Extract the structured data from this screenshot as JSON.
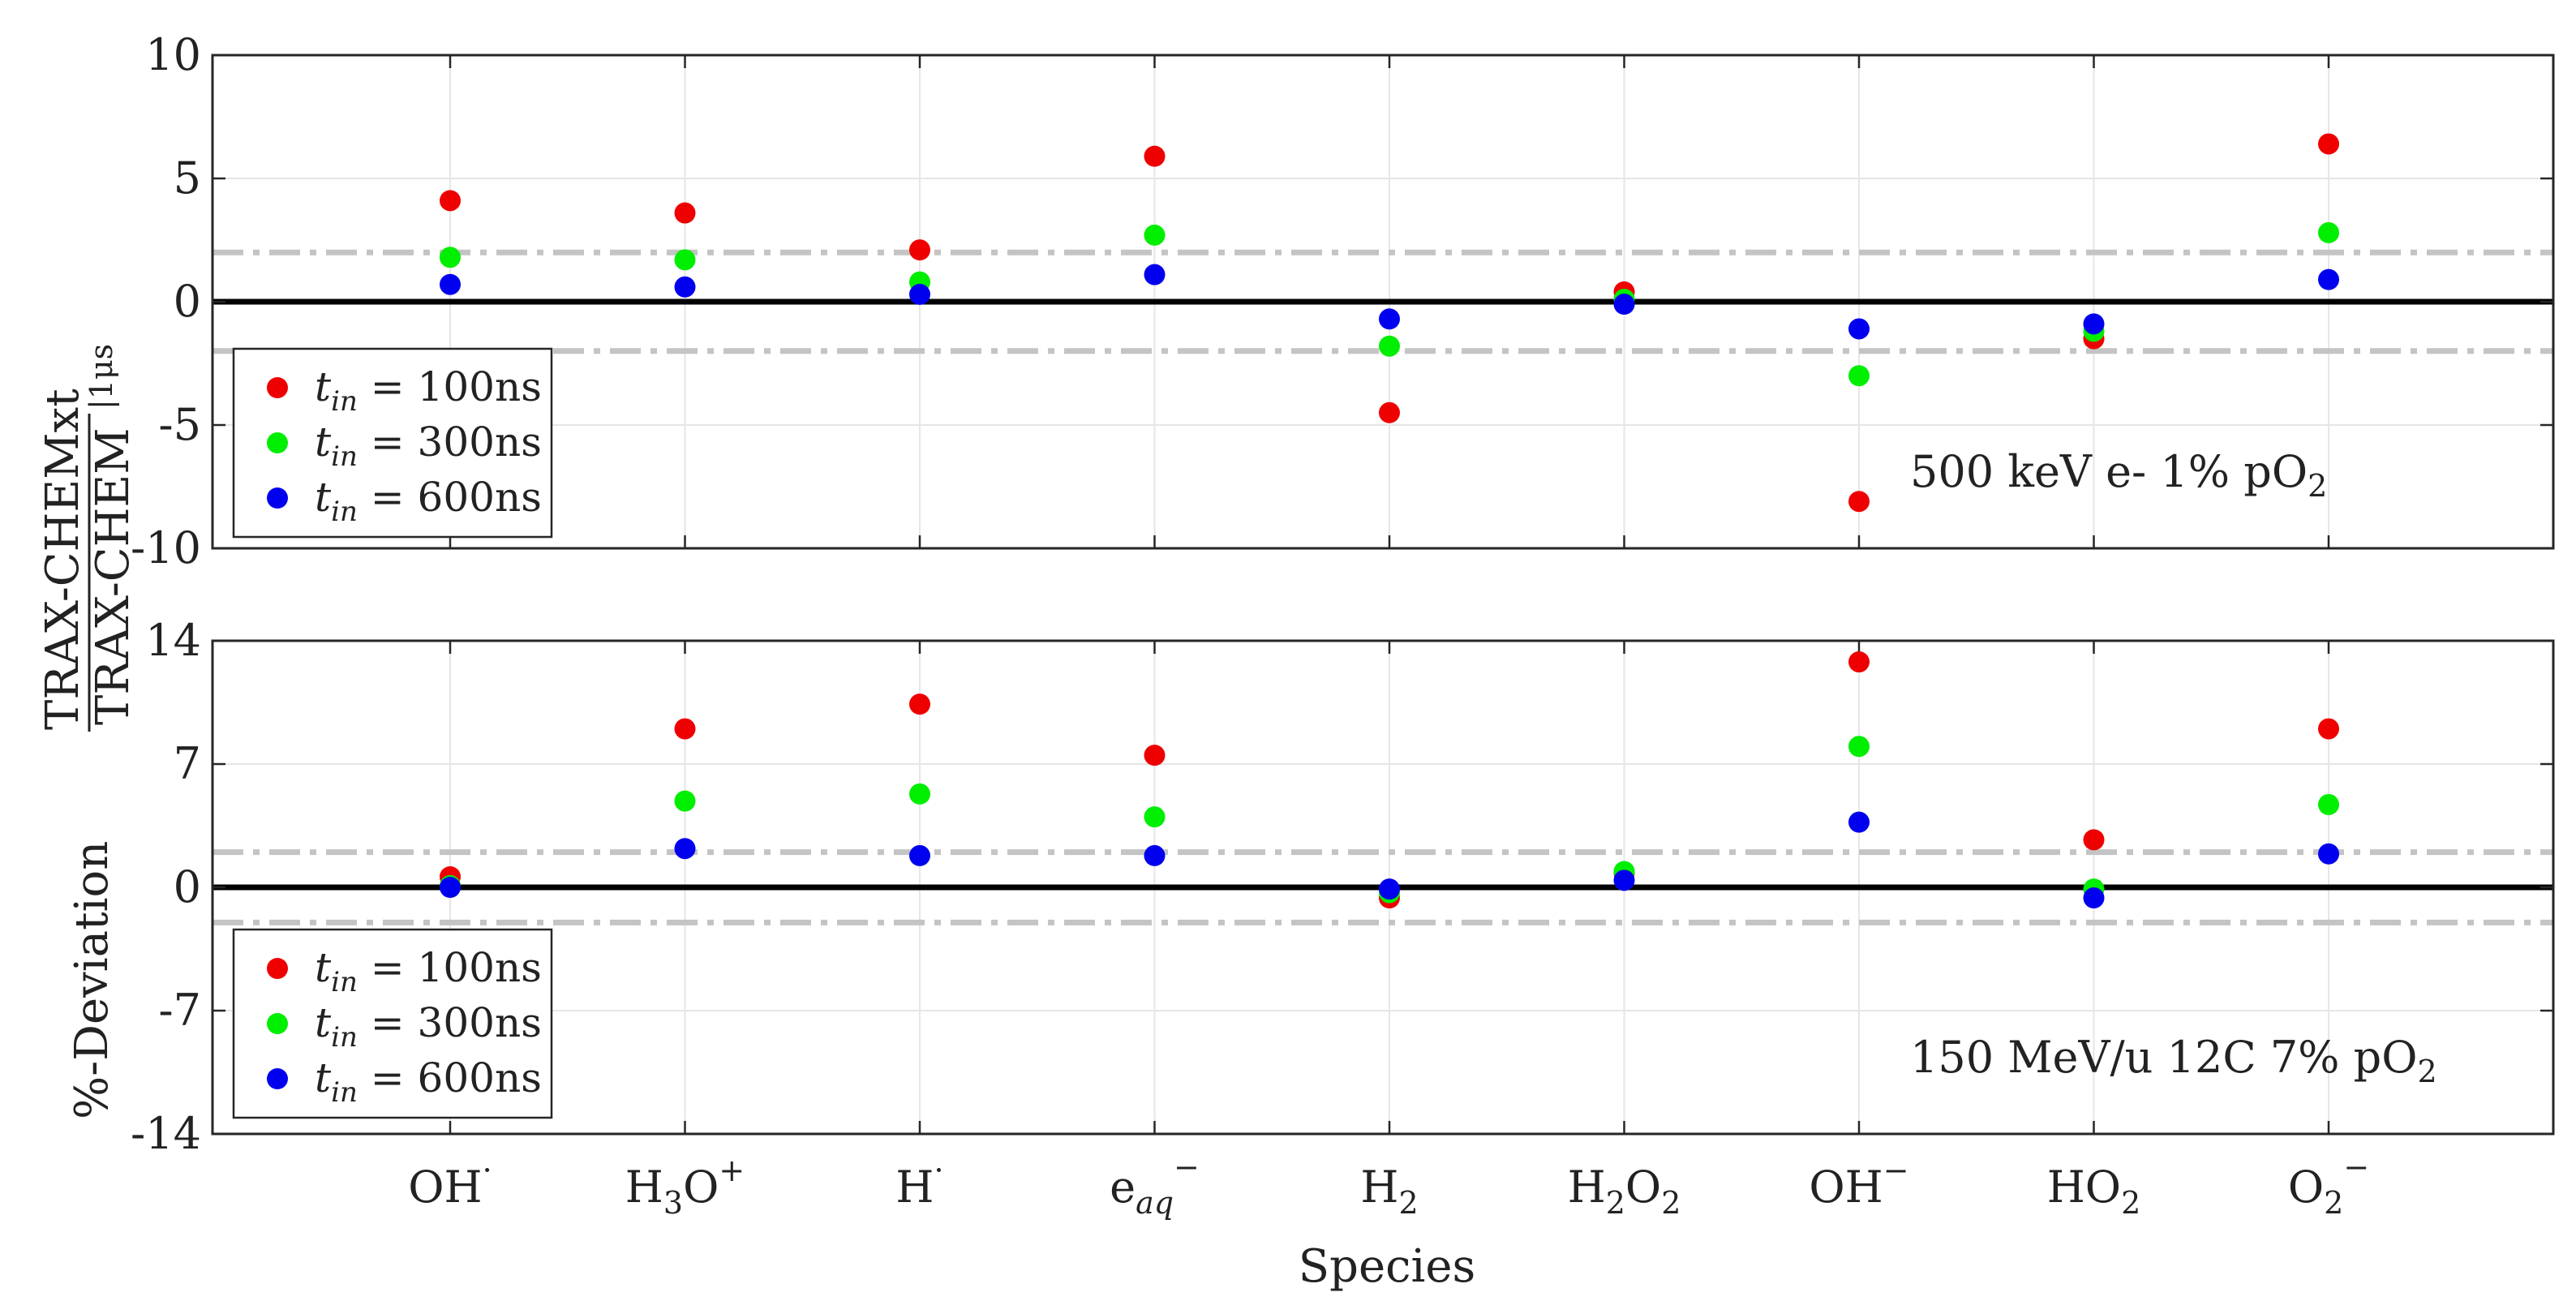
{
  "figure": {
    "xlabel": "Species",
    "ylabel": {
      "prefix": "%-Deviation",
      "numerator": "TRAX-CHEMxt",
      "denominator": "TRAX-CHEM",
      "subscript": "|1μs"
    },
    "categories": [
      "OH·",
      "H3O+",
      "H·",
      "e-aq",
      "H2",
      "H2O2",
      "OH-",
      "HO2",
      "O2-"
    ],
    "category_labels": [
      {
        "base": "OH",
        "sub": "",
        "sup": "·",
        "tail": ""
      },
      {
        "base": "H",
        "sub": "3",
        "sup": "",
        "tail": "O+"
      },
      {
        "base": "H",
        "sub": "",
        "sup": "·",
        "tail": ""
      },
      {
        "base": "e",
        "sub": "aq",
        "sup": "−",
        "tail": ""
      },
      {
        "base": "H",
        "sub": "2",
        "sup": "",
        "tail": ""
      },
      {
        "base": "H",
        "sub": "2",
        "sup": "",
        "tail": "O2"
      },
      {
        "base": "OH",
        "sub": "",
        "sup": "−",
        "tail": ""
      },
      {
        "base": "HO",
        "sub": "2",
        "sup": "",
        "tail": ""
      },
      {
        "base": "O",
        "sub": "2",
        "sup": "−",
        "tail": ""
      }
    ],
    "colors": {
      "t100": "#ee0000",
      "t300": "#00ee00",
      "t600": "#0000ee",
      "zero_line": "#000000",
      "threshold": "#c4c4c4",
      "grid": "#e6e6e6"
    },
    "legend_entries": [
      {
        "var": "t",
        "sub": "in",
        "value": " = 100ns"
      },
      {
        "var": "t",
        "sub": "in",
        "value": " = 300ns"
      },
      {
        "var": "t",
        "sub": "in",
        "value": " = 600ns"
      }
    ]
  },
  "chart_data": [
    {
      "type": "scatter",
      "annotation": "500 keV e- 1% pO2",
      "annotation_parts": {
        "text": "500 keV e- 1% pO",
        "sub": "2"
      },
      "categories": [
        "OH·",
        "H3O+",
        "H·",
        "e-aq",
        "H2",
        "H2O2",
        "OH-",
        "HO2",
        "O2-"
      ],
      "ylim": [
        -10,
        10
      ],
      "yticks": [
        10,
        5,
        0,
        -5,
        -10
      ],
      "ytick_labels": [
        "10",
        "5",
        "0",
        "-5",
        "-10"
      ],
      "threshold": 2,
      "grid": true,
      "legend_location": "bottom-left",
      "series": [
        {
          "name": "t_in = 100ns",
          "color_key": "t100",
          "values": [
            4.1,
            3.6,
            2.1,
            5.9,
            -4.5,
            0.4,
            -8.1,
            -1.5,
            6.4
          ]
        },
        {
          "name": "t_in = 300ns",
          "color_key": "t300",
          "values": [
            1.8,
            1.7,
            0.8,
            2.7,
            -1.8,
            0.1,
            -3.0,
            -1.2,
            2.8
          ]
        },
        {
          "name": "t_in = 600ns",
          "color_key": "t600",
          "values": [
            0.7,
            0.6,
            0.3,
            1.1,
            -0.7,
            -0.1,
            -1.1,
            -0.9,
            0.9
          ]
        }
      ]
    },
    {
      "type": "scatter",
      "annotation": "150 MeV/u 12C 7% pO2",
      "annotation_parts": {
        "text": "150 MeV/u 12C 7% pO",
        "sub": "2"
      },
      "categories": [
        "OH·",
        "H3O+",
        "H·",
        "e-aq",
        "H2",
        "H2O2",
        "OH-",
        "HO2",
        "O2-"
      ],
      "ylim": [
        -14,
        14
      ],
      "yticks": [
        14,
        7,
        0,
        -7,
        -14
      ],
      "ytick_labels": [
        "14",
        "7",
        "0",
        "-7",
        "-14"
      ],
      "threshold": 2,
      "grid": true,
      "legend_location": "bottom-left",
      "series": [
        {
          "name": "t_in = 100ns",
          "color_key": "t100",
          "values": [
            0.6,
            9.0,
            10.4,
            7.5,
            -0.6,
            0.8,
            12.8,
            2.7,
            9.0
          ]
        },
        {
          "name": "t_in = 300ns",
          "color_key": "t300",
          "values": [
            0.1,
            4.9,
            5.3,
            4.0,
            -0.3,
            0.9,
            8.0,
            -0.1,
            4.7
          ]
        },
        {
          "name": "t_in = 600ns",
          "color_key": "t600",
          "values": [
            0.0,
            2.2,
            1.8,
            1.8,
            -0.1,
            0.4,
            3.7,
            -0.6,
            1.9
          ]
        }
      ]
    }
  ]
}
